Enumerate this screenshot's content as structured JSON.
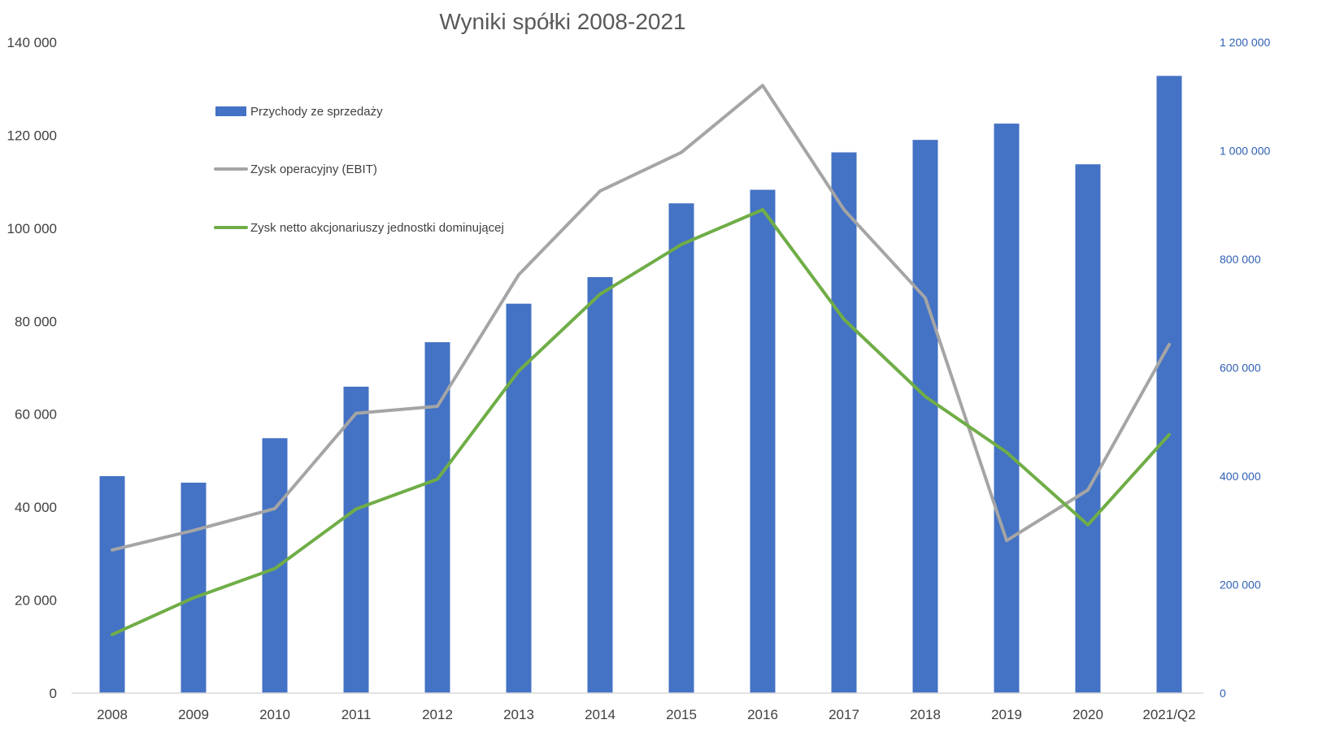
{
  "chart_data": {
    "type": "bar",
    "title": "Wyniki spółki 2008-2021",
    "categories": [
      "2008",
      "2009",
      "2010",
      "2011",
      "2012",
      "2013",
      "2014",
      "2015",
      "2016",
      "2017",
      "2018",
      "2019",
      "2020",
      "2021/Q2"
    ],
    "left_axis": {
      "ylim": [
        0,
        140000
      ],
      "ticks": [
        0,
        20000,
        40000,
        60000,
        80000,
        100000,
        120000,
        140000
      ],
      "tick_labels": [
        "0",
        "20 000",
        "40 000",
        "60 000",
        "80 000",
        "100 000",
        "120 000",
        "140 000"
      ]
    },
    "right_axis": {
      "ylim": [
        0,
        1200000
      ],
      "ticks": [
        0,
        200000,
        400000,
        600000,
        800000,
        1000000,
        1200000
      ],
      "tick_labels": [
        "0",
        "200 000",
        "400 000",
        "600 000",
        "800 000",
        "1 000 000",
        "1 200 000"
      ]
    },
    "series": [
      {
        "name": "Przychody ze sprzedaży",
        "type": "bar",
        "axis": "right",
        "color": "#4472c4",
        "values": [
          400000,
          388000,
          470000,
          565000,
          647000,
          718000,
          767000,
          903000,
          928000,
          997000,
          1020000,
          1050000,
          975000,
          1138000
        ]
      },
      {
        "name": "Zysk operacyjny (EBIT)",
        "type": "line",
        "axis": "left",
        "color": "#a5a5a5",
        "values": [
          30800,
          35000,
          39700,
          60200,
          61700,
          90000,
          108000,
          116300,
          130700,
          104000,
          85000,
          32800,
          43700,
          75000
        ]
      },
      {
        "name": "Zysk netto akcjonariuszy jednostki dominującej",
        "type": "line",
        "axis": "left",
        "color": "#70ad47",
        "values": [
          12600,
          20500,
          26800,
          39600,
          46000,
          69300,
          85800,
          96500,
          104000,
          80400,
          63800,
          51800,
          36200,
          55600
        ]
      }
    ],
    "legend_position": "top-left",
    "grid": false
  }
}
